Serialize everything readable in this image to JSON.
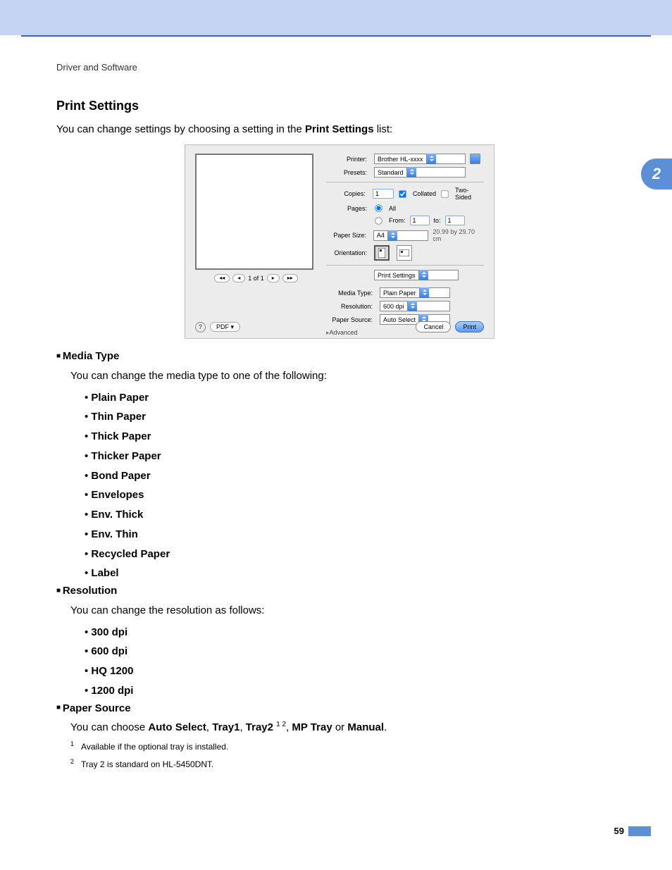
{
  "breadcrumb": "Driver and Software",
  "section_title": "Print Settings",
  "intro_pre": "You can change settings by choosing a setting in the ",
  "intro_bold": "Print Settings",
  "intro_post": " list:",
  "chapter_tab": "2",
  "page_number": "59",
  "dlg": {
    "printer_lbl": "Printer:",
    "printer_val": "Brother HL-xxxx",
    "presets_lbl": "Presets:",
    "presets_val": "Standard",
    "copies_lbl": "Copies:",
    "copies_val": "1",
    "collated": "Collated",
    "twosided": "Two-Sided",
    "pages_lbl": "Pages:",
    "pages_all": "All",
    "pages_from": "From:",
    "pages_from_v": "1",
    "pages_to": "to:",
    "pages_to_v": "1",
    "papersize_lbl": "Paper Size:",
    "papersize_val": "A4",
    "papersize_dim": "20.99 by 29.70 cm",
    "orient_lbl": "Orientation:",
    "panel_sel": "Print Settings",
    "mediatype_lbl": "Media Type:",
    "mediatype_val": "Plain Paper",
    "resolution_lbl": "Resolution:",
    "resolution_val": "600 dpi",
    "papersource_lbl": "Paper Source:",
    "papersource_val": "Auto Select",
    "advanced": "Advanced",
    "pager": "1 of 1",
    "pdf": "PDF ▾",
    "cancel": "Cancel",
    "print": "Print"
  },
  "mediatype": {
    "header": "Media Type",
    "desc": "You can change the media type to one of the following:",
    "items": [
      "Plain Paper",
      "Thin Paper",
      "Thick Paper",
      "Thicker Paper",
      "Bond Paper",
      "Envelopes",
      "Env. Thick",
      "Env. Thin",
      "Recycled Paper",
      "Label"
    ]
  },
  "resolution": {
    "header": "Resolution",
    "desc": "You can change the resolution as follows:",
    "items": [
      "300 dpi",
      "600 dpi",
      "HQ 1200",
      "1200 dpi"
    ]
  },
  "papersource": {
    "header": "Paper Source",
    "desc_pre": "You can choose ",
    "opts": [
      "Auto Select",
      "Tray1",
      "Tray2",
      "MP Tray",
      "Manual"
    ],
    "sup12": "1 2",
    "desc_post_mid": " or ",
    "foot1": "Available if the optional tray is installed.",
    "foot2": "Tray 2 is standard on HL-5450DNT."
  }
}
